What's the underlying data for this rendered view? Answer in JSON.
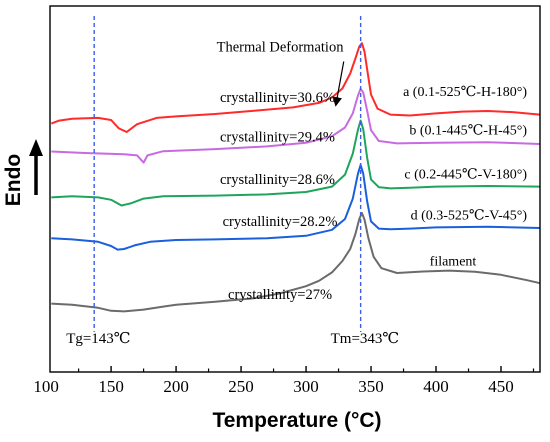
{
  "chart_data": {
    "type": "line",
    "xlabel": "Temperature (°C)",
    "ylabel": "Endo",
    "xlim": [
      103,
      480
    ],
    "x_ticks": [
      100,
      150,
      200,
      250,
      300,
      350,
      400,
      450
    ],
    "y_ticks_shown": false,
    "grid": false,
    "legend": "none",
    "series": [
      {
        "name": "a (0.1-525℃-H-180°)",
        "color": "#ff2a2a",
        "x": [
          104,
          110,
          120,
          140,
          150,
          156,
          162,
          170,
          185,
          200,
          230,
          260,
          290,
          310,
          320,
          328,
          334,
          338,
          341,
          343,
          345,
          347,
          350,
          355,
          365,
          380,
          400,
          420,
          440,
          460,
          480
        ],
        "values": [
          8.28,
          8.38,
          8.44,
          8.47,
          8.4,
          8.12,
          8.0,
          8.26,
          8.47,
          8.52,
          8.6,
          8.71,
          8.82,
          8.97,
          9.15,
          9.45,
          9.95,
          10.45,
          10.85,
          10.96,
          10.68,
          10.1,
          9.25,
          8.78,
          8.58,
          8.55,
          8.62,
          8.68,
          8.7,
          8.66,
          8.58
        ]
      },
      {
        "name": "b (0.1-445℃-H-45°)",
        "color": "#c86be0",
        "x": [
          104,
          130,
          160,
          170,
          175,
          178,
          190,
          230,
          270,
          300,
          320,
          330,
          336,
          340,
          342,
          344,
          347,
          350,
          356,
          370,
          400,
          440,
          480
        ],
        "values": [
          7.35,
          7.3,
          7.26,
          7.22,
          6.98,
          7.22,
          7.36,
          7.43,
          7.52,
          7.64,
          7.86,
          8.15,
          8.62,
          9.22,
          9.44,
          9.32,
          8.72,
          8.06,
          7.7,
          7.62,
          7.64,
          7.66,
          7.6
        ]
      },
      {
        "name": "c (0.2-445℃-V-180°)",
        "color": "#1fa55b",
        "x": [
          104,
          120,
          140,
          150,
          158,
          165,
          175,
          190,
          230,
          270,
          300,
          320,
          330,
          336,
          340,
          342,
          344,
          347,
          350,
          356,
          365,
          380,
          400,
          440,
          480
        ],
        "values": [
          5.82,
          5.86,
          5.82,
          5.74,
          5.55,
          5.62,
          5.78,
          5.86,
          5.88,
          5.92,
          6.0,
          6.18,
          6.58,
          7.28,
          8.08,
          8.38,
          8.1,
          7.15,
          6.42,
          6.16,
          6.12,
          6.14,
          6.18,
          6.2,
          6.18
        ]
      },
      {
        "name": "d (0.3-525℃-V-45°)",
        "color": "#1a5fdc",
        "x": [
          104,
          120,
          140,
          150,
          155,
          160,
          168,
          180,
          200,
          230,
          270,
          300,
          320,
          330,
          336,
          340,
          342,
          344,
          347,
          350,
          356,
          365,
          380,
          400,
          440,
          480
        ],
        "values": [
          4.46,
          4.42,
          4.34,
          4.2,
          4.08,
          4.1,
          4.22,
          4.34,
          4.4,
          4.42,
          4.46,
          4.54,
          4.74,
          5.1,
          5.78,
          6.62,
          6.9,
          6.62,
          5.7,
          5.02,
          4.78,
          4.76,
          4.78,
          4.82,
          4.84,
          4.8
        ]
      },
      {
        "name": "filament",
        "color": "#6b6b6b",
        "x": [
          104,
          120,
          140,
          150,
          160,
          175,
          190,
          200,
          230,
          260,
          280,
          300,
          310,
          320,
          328,
          334,
          338,
          341,
          343,
          345,
          348,
          352,
          358,
          370,
          390,
          410,
          430,
          450,
          470,
          480
        ],
        "values": [
          2.28,
          2.24,
          2.14,
          2.04,
          2.02,
          2.08,
          2.18,
          2.24,
          2.34,
          2.46,
          2.62,
          2.86,
          3.04,
          3.32,
          3.7,
          4.1,
          4.6,
          5.1,
          5.3,
          5.08,
          4.46,
          3.84,
          3.46,
          3.3,
          3.35,
          3.38,
          3.34,
          3.24,
          3.06,
          2.96
        ]
      }
    ],
    "reference_lines": [
      {
        "x": 137,
        "color": "#3c5cf0",
        "style": "dashed",
        "label": "Tg=143℃"
      },
      {
        "x": 342,
        "color": "#3c5cf0",
        "style": "dashed",
        "label": "Tm=343℃"
      }
    ],
    "annotations": {
      "crystallinity": [
        {
          "text": "crystallinity=30.6%",
          "x": 278,
          "y": 9.0
        },
        {
          "text": "crystallinity=29.4%",
          "x": 278,
          "y": 7.68
        },
        {
          "text": "crystallinity=28.6%",
          "x": 278,
          "y": 6.26
        },
        {
          "text": "crystallinity=28.2%",
          "x": 280,
          "y": 4.86
        },
        {
          "text": "crystallinity=27%",
          "x": 280,
          "y": 2.44
        }
      ],
      "sample_labels": [
        {
          "text": "a (0.1-525℃-H-180°)",
          "x": 470,
          "y": 9.2
        },
        {
          "text": "b (0.1-445℃-H-45°)",
          "x": 470,
          "y": 7.92
        },
        {
          "text": "c (0.2-445℃-V-180°)",
          "x": 470,
          "y": 6.45
        },
        {
          "text": "d (0.3-525℃-V-45°)",
          "x": 470,
          "y": 5.08
        },
        {
          "text": "filament",
          "x": 431,
          "y": 3.55
        }
      ],
      "thermal_deformation": {
        "text": "Thermal Deformation",
        "text_x": 280,
        "text_y": 10.68,
        "arrow_from": [
          329,
          10.35
        ],
        "arrow_to": [
          323,
          8.92
        ]
      }
    },
    "y_range": [
      0,
      12.2
    ]
  }
}
